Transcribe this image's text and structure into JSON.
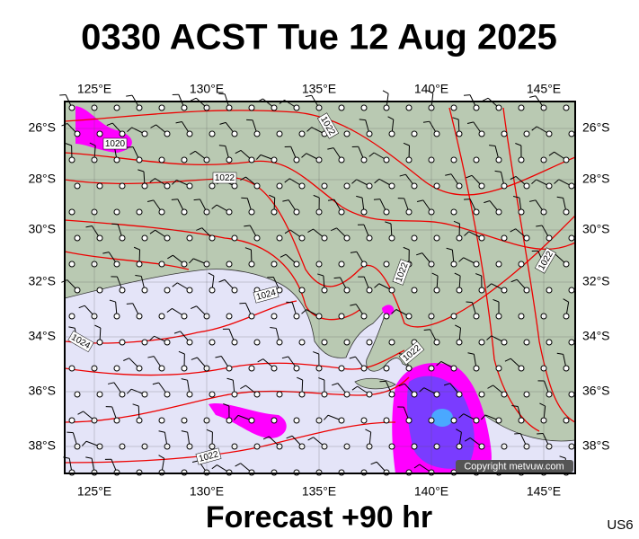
{
  "header": {
    "title": "0330 ACST Tue 12 Aug 2025"
  },
  "map": {
    "lon_labels": [
      "125°E",
      "130°E",
      "135°E",
      "140°E",
      "145°E"
    ],
    "lat_labels": [
      "26°S",
      "28°S",
      "30°S",
      "32°S",
      "34°S",
      "36°S",
      "38°S"
    ],
    "isobar_labels": [
      1020,
      1022,
      1022,
      1022,
      1022,
      1024,
      1024,
      1022,
      1022
    ],
    "copyright": "Copyright metvuw.com"
  },
  "footer": {
    "forecast": "Forecast +90 hr",
    "code": "US6"
  }
}
